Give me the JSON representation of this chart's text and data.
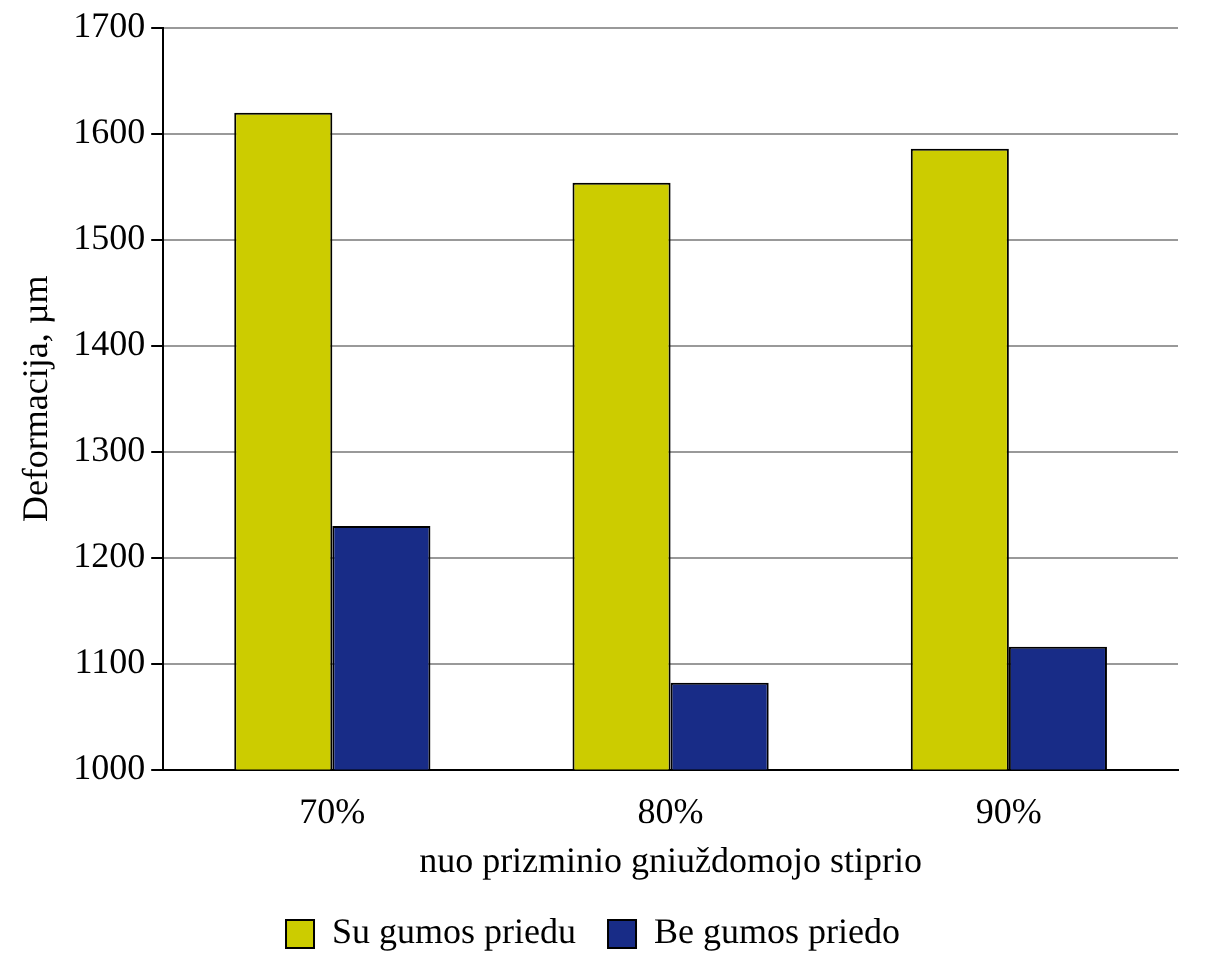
{
  "chart_data": {
    "type": "bar",
    "xlabel": "nuo prizminio gniuždomojo stiprio",
    "ylabel": "Deformacija, µm",
    "categories": [
      "70%",
      "80%",
      "90%"
    ],
    "series": [
      {
        "name": "Su gumos priedu",
        "color": "#cccc00",
        "values": [
          1620,
          1554,
          1586
        ]
      },
      {
        "name": "Be gumos priedo",
        "color": "#182c87",
        "values": [
          1230,
          1082,
          1116
        ]
      }
    ],
    "ylim": [
      1000,
      1700
    ],
    "yticks": [
      1000,
      1100,
      1200,
      1300,
      1400,
      1500,
      1600,
      1700
    ],
    "grid": "y",
    "legend": "bottom"
  }
}
